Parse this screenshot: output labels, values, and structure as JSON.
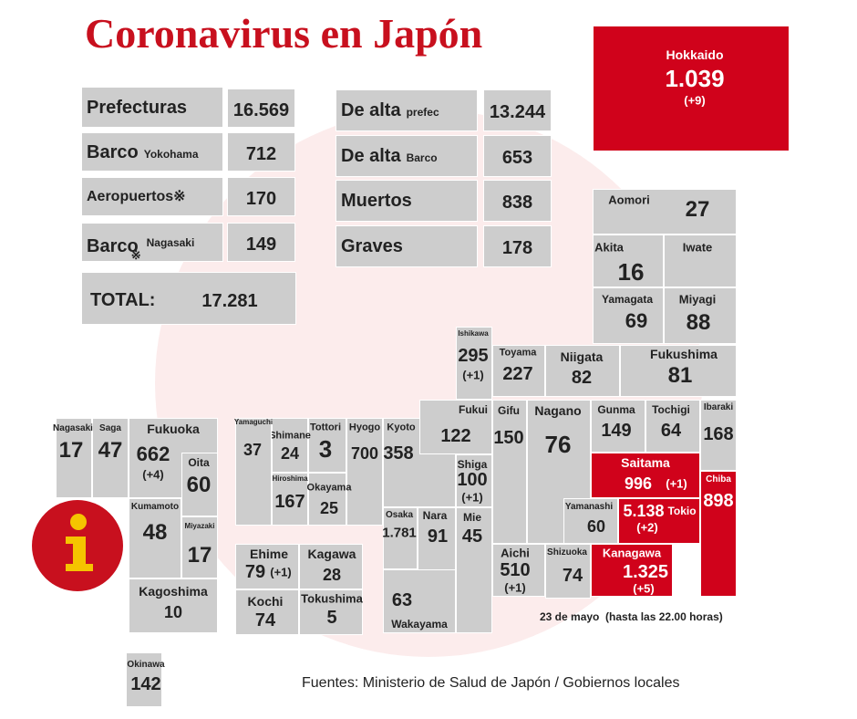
{
  "title": "Coronavirus en Japón",
  "summary": [
    {
      "label": "Prefecturas",
      "value": "16.569"
    },
    {
      "label": "Barco",
      "sublabel": "Yokohama",
      "value": "712"
    },
    {
      "label": "Aeropuertos※",
      "value": "170"
    },
    {
      "label": "Barco",
      "note": "※",
      "sublabel": "Nagasaki",
      "value": "149"
    },
    {
      "label": "De alta",
      "sublabel": "prefec",
      "value": "13.244"
    },
    {
      "label": "De alta",
      "sublabel": "Barco",
      "value": "653"
    },
    {
      "label": "Muertos",
      "value": "838"
    },
    {
      "label": "Graves",
      "value": "178"
    }
  ],
  "total": {
    "label": "TOTAL:",
    "value": "17.281"
  },
  "prefectures": [
    {
      "name": "Hokkaido",
      "value": "1.039",
      "change": "(+9)"
    },
    {
      "name": "Aomori",
      "value": "27"
    },
    {
      "name": "Akita",
      "value": "16"
    },
    {
      "name": "Iwate"
    },
    {
      "name": "Yamagata",
      "value": "69"
    },
    {
      "name": "Miyagi",
      "value": "88"
    },
    {
      "name": "Ishikawa",
      "value": "295",
      "change": "(+1)"
    },
    {
      "name": "Toyama",
      "value": "227"
    },
    {
      "name": "Niigata",
      "value": "82"
    },
    {
      "name": "Fukushima",
      "value": "81"
    },
    {
      "name": "Kyoto",
      "value": "358"
    },
    {
      "name": "Fukui",
      "value": "122"
    },
    {
      "name": "Gifu",
      "value": "150"
    },
    {
      "name": "Nagano",
      "value": "76"
    },
    {
      "name": "Gunma",
      "value": "149"
    },
    {
      "name": "Tochigi",
      "value": "64"
    },
    {
      "name": "Ibaraki",
      "value": "168"
    },
    {
      "name": "Saitama",
      "value": "996",
      "change": "(+1)"
    },
    {
      "name": "Chiba",
      "value": "898"
    },
    {
      "name": "Yamanashi",
      "value": "60"
    },
    {
      "name": "Tokio",
      "value": "5.138",
      "change": "(+2)"
    },
    {
      "name": "Kanagawa",
      "value": "1.325",
      "change": "(+5)"
    },
    {
      "name": "Shizuoka",
      "value": "74"
    },
    {
      "name": "Aichi",
      "value": "510",
      "change": "(+1)"
    },
    {
      "name": "Shiga",
      "value": "100",
      "change": "(+1)"
    },
    {
      "name": "Mie",
      "value": "45"
    },
    {
      "name": "Osaka",
      "value": "1.781"
    },
    {
      "name": "Nara",
      "value": "91"
    },
    {
      "name": "Wakayama",
      "value": "63"
    },
    {
      "name": "Hyogo",
      "value": "700"
    },
    {
      "name": "Tottori",
      "value": "3"
    },
    {
      "name": "Shimane",
      "value": "24"
    },
    {
      "name": "Hiroshima",
      "value": "167"
    },
    {
      "name": "Okayama",
      "value": "25"
    },
    {
      "name": "Yamaguchi",
      "value": "37"
    },
    {
      "name": "Ehime",
      "value": "79",
      "change": "(+1)"
    },
    {
      "name": "Kagawa",
      "value": "28"
    },
    {
      "name": "Kochi",
      "value": "74"
    },
    {
      "name": "Tokushima",
      "value": "5"
    },
    {
      "name": "Fukuoka",
      "value": "662",
      "change": "(+4)"
    },
    {
      "name": "Oita",
      "value": "60"
    },
    {
      "name": "Saga",
      "value": "47"
    },
    {
      "name": "Nagasaki",
      "value": "17"
    },
    {
      "name": "Kumamoto",
      "value": "48"
    },
    {
      "name": "Miyazaki",
      "value": "17"
    },
    {
      "name": "Kagoshima",
      "value": "10"
    },
    {
      "name": "Okinawa",
      "value": "142"
    }
  ],
  "date": "23 de mayo  (hasta las 22.00 horas)",
  "source": "Fuentes: Ministerio de Salud de Japón / Gobiernos locales"
}
